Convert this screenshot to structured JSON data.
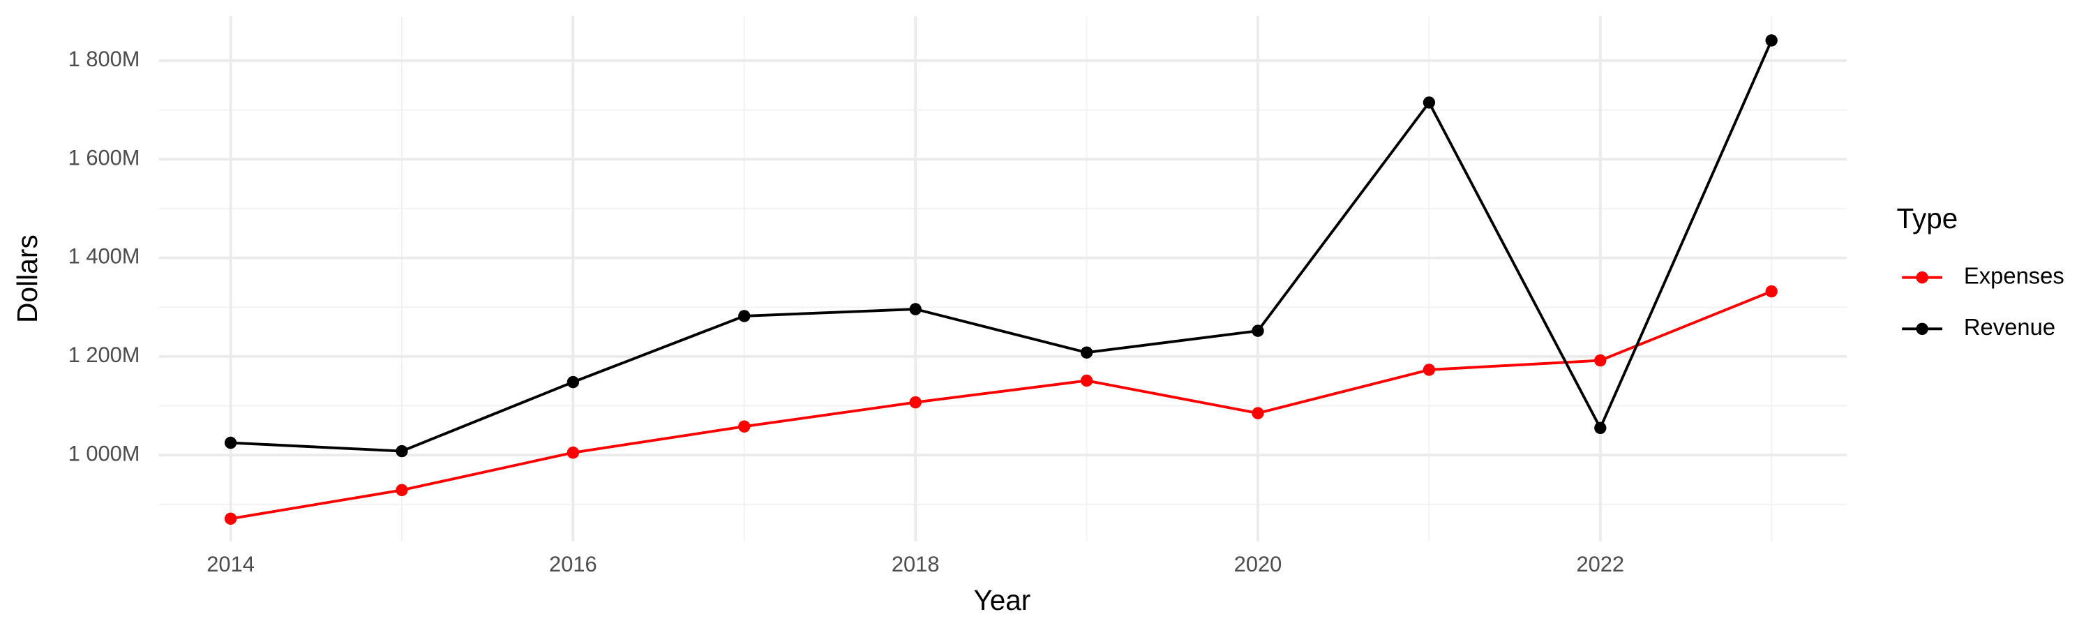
{
  "chart_data": {
    "type": "line",
    "x_label": "Year",
    "y_label": "Dollars",
    "x": [
      2014,
      2015,
      2016,
      2017,
      2018,
      2019,
      2020,
      2021,
      2022,
      2023
    ],
    "series": [
      {
        "name": "Expenses",
        "color": "#ff0000",
        "values": [
          871,
          929,
          1005,
          1058,
          1107,
          1151,
          1085,
          1173,
          1192,
          1332
        ]
      },
      {
        "name": "Revenue",
        "color": "#000000",
        "values": [
          1025,
          1008,
          1148,
          1282,
          1296,
          1208,
          1252,
          1715,
          1055,
          1841
        ]
      }
    ],
    "xlim": [
      2013.58,
      2023.44
    ],
    "xticks": [
      2014,
      2016,
      2018,
      2020,
      2022
    ],
    "ylim": [
      825,
      1890
    ],
    "yticks": [
      {
        "value": 1000,
        "label": "1 000M"
      },
      {
        "value": 1200,
        "label": "1 200M"
      },
      {
        "value": 1400,
        "label": "1 400M"
      },
      {
        "value": 1600,
        "label": "1 600M"
      },
      {
        "value": 1800,
        "label": "1 800M"
      }
    ],
    "grid": true,
    "minor_grid": true,
    "legend_title": "Type",
    "legend_position": "right"
  }
}
